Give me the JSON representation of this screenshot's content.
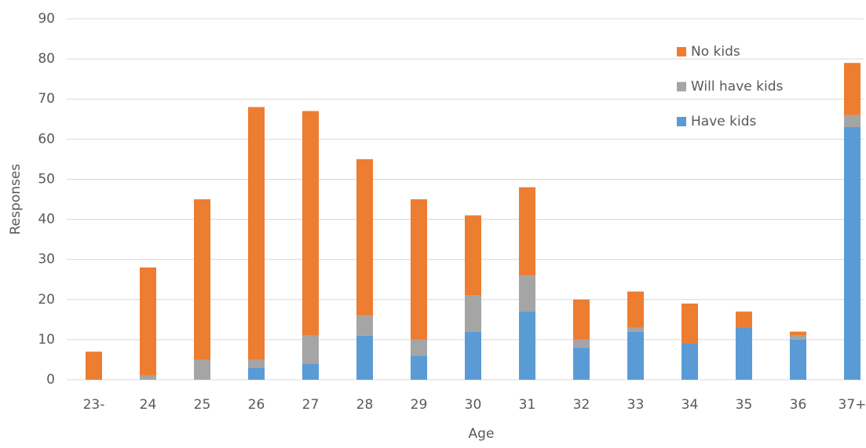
{
  "chart_data": {
    "type": "stacked_bar",
    "x_label": "Age",
    "y_label": "Responses",
    "categories": [
      "23-",
      "24",
      "25",
      "26",
      "27",
      "28",
      "29",
      "30",
      "31",
      "32",
      "33",
      "34",
      "35",
      "36",
      "37+"
    ],
    "series": [
      {
        "name": "Have kids",
        "color": "#5b9bd5",
        "values": [
          0,
          0,
          0,
          3,
          4,
          11,
          6,
          12,
          17,
          8,
          12,
          9,
          13,
          10,
          63
        ]
      },
      {
        "name": "Will have kids",
        "color": "#a5a5a5",
        "values": [
          0,
          1,
          5,
          2,
          7,
          5,
          4,
          9,
          9,
          2,
          1,
          0,
          0,
          1,
          3
        ]
      },
      {
        "name": "No kids",
        "color": "#ed7d31",
        "values": [
          7,
          27,
          40,
          63,
          56,
          39,
          35,
          20,
          22,
          10,
          9,
          10,
          4,
          1,
          13
        ]
      }
    ],
    "ylim": [
      0,
      90
    ],
    "yticks": [
      0,
      10,
      20,
      30,
      40,
      50,
      60,
      70,
      80,
      90
    ],
    "grid": true,
    "legend": "top-right"
  }
}
